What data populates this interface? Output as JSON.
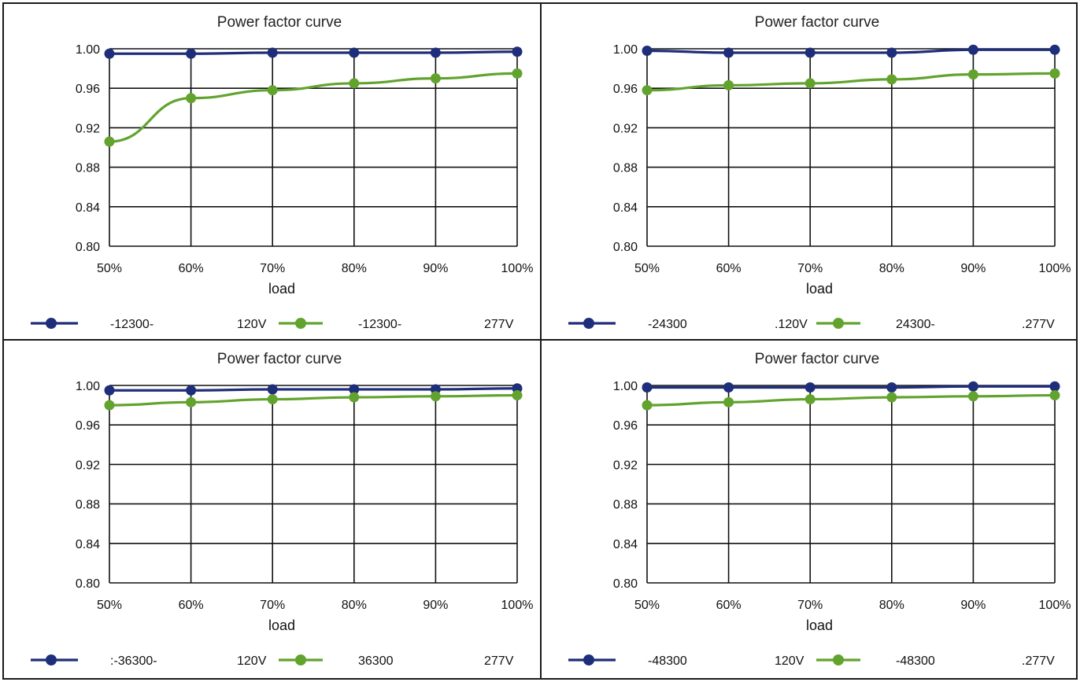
{
  "colors": {
    "s120": "#1f2e7a",
    "s277": "#62a32e"
  },
  "chart_data": [
    {
      "type": "line",
      "title": "Power factor curve",
      "xlabel": "load",
      "ylabel": "",
      "categories": [
        "50%",
        "60%",
        "70%",
        "80%",
        "90%",
        "100%"
      ],
      "ylim": [
        0.8,
        1.0
      ],
      "yticks": [
        "0.80",
        "0.84",
        "0.88",
        "0.92",
        "0.96",
        "1.00"
      ],
      "grid": true,
      "legend": "bottom",
      "series": [
        {
          "name": "-12300-",
          "suffix": "120V",
          "color": "#1f2e7a",
          "values": [
            0.995,
            0.995,
            0.996,
            0.996,
            0.996,
            0.997
          ]
        },
        {
          "name": "-12300-",
          "suffix": "277V",
          "color": "#62a32e",
          "values": [
            0.906,
            0.95,
            0.958,
            0.965,
            0.97,
            0.975
          ]
        }
      ]
    },
    {
      "type": "line",
      "title": "Power factor curve",
      "xlabel": "load",
      "ylabel": "",
      "categories": [
        "50%",
        "60%",
        "70%",
        "80%",
        "90%",
        "100%"
      ],
      "ylim": [
        0.8,
        1.0
      ],
      "yticks": [
        "0.80",
        "0.84",
        "0.88",
        "0.92",
        "0.96",
        "1.00"
      ],
      "grid": true,
      "legend": "bottom",
      "series": [
        {
          "name": "-24300",
          "suffix": ".120V",
          "color": "#1f2e7a",
          "values": [
            0.998,
            0.996,
            0.996,
            0.996,
            0.999,
            0.999
          ]
        },
        {
          "name": "24300-",
          "suffix": ".277V",
          "color": "#62a32e",
          "values": [
            0.958,
            0.963,
            0.965,
            0.969,
            0.974,
            0.975
          ]
        }
      ]
    },
    {
      "type": "line",
      "title": "Power factor curve",
      "xlabel": "load",
      "ylabel": "",
      "categories": [
        "50%",
        "60%",
        "70%",
        "80%",
        "90%",
        "100%"
      ],
      "ylim": [
        0.8,
        1.0
      ],
      "yticks": [
        "0.80",
        "0.84",
        "0.88",
        "0.92",
        "0.96",
        "1.00"
      ],
      "grid": true,
      "legend": "bottom",
      "series": [
        {
          "name": ":-36300-",
          "suffix": "120V",
          "color": "#1f2e7a",
          "values": [
            0.995,
            0.995,
            0.996,
            0.996,
            0.996,
            0.997
          ]
        },
        {
          "name": "36300",
          "suffix": "277V",
          "color": "#62a32e",
          "values": [
            0.98,
            0.983,
            0.986,
            0.988,
            0.989,
            0.99
          ]
        }
      ]
    },
    {
      "type": "line",
      "title": "Power factor curve",
      "xlabel": "load",
      "ylabel": "",
      "categories": [
        "50%",
        "60%",
        "70%",
        "80%",
        "90%",
        "100%"
      ],
      "ylim": [
        0.8,
        1.0
      ],
      "yticks": [
        "0.80",
        "0.84",
        "0.88",
        "0.92",
        "0.96",
        "1.00"
      ],
      "grid": true,
      "legend": "bottom",
      "series": [
        {
          "name": "-48300",
          "suffix": "120V",
          "color": "#1f2e7a",
          "values": [
            0.998,
            0.998,
            0.998,
            0.998,
            0.999,
            0.999
          ]
        },
        {
          "name": "-48300",
          "suffix": ".277V",
          "color": "#62a32e",
          "values": [
            0.98,
            0.983,
            0.986,
            0.988,
            0.989,
            0.99
          ]
        }
      ]
    }
  ]
}
